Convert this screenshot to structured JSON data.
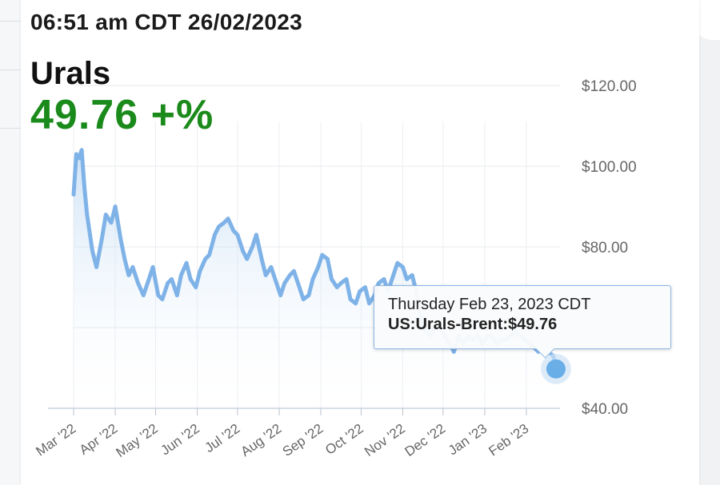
{
  "header": {
    "timestamp": "06:51 am CDT 26/02/2023",
    "title": "Urals",
    "value": "49.76 +%"
  },
  "tooltip": {
    "date": "Thursday Feb 23, 2023 CDT",
    "series_label": "US:Urals-Brent:",
    "series_value": "$49.76"
  },
  "colors": {
    "line": "#7fb3e8",
    "value_green": "#1a8a1a",
    "marker": "#6aaee8",
    "fill_top": "#a9ccef"
  },
  "chart_data": {
    "type": "area",
    "title": "Urals",
    "ylim": [
      40,
      120
    ],
    "yticks": [
      40,
      60,
      80,
      100,
      120
    ],
    "ytick_labels": [
      "$40.00",
      "",
      "$80.00",
      "$100.00",
      "$120.00"
    ],
    "xlim": [
      "2022-03-01",
      "2023-02-26"
    ],
    "xticks": [
      {
        "date": "2022-03-01",
        "label": "Mar '22"
      },
      {
        "date": "2022-04-01",
        "label": "Apr '22"
      },
      {
        "date": "2022-05-01",
        "label": "May '22"
      },
      {
        "date": "2022-06-01",
        "label": "Jun '22"
      },
      {
        "date": "2022-07-01",
        "label": "Jul '22"
      },
      {
        "date": "2022-08-01",
        "label": "Aug '22"
      },
      {
        "date": "2022-09-01",
        "label": "Sep '22"
      },
      {
        "date": "2022-10-01",
        "label": "Oct '22"
      },
      {
        "date": "2022-11-01",
        "label": "Nov '22"
      },
      {
        "date": "2022-12-01",
        "label": "Dec '22"
      },
      {
        "date": "2023-01-01",
        "label": "Jan '23"
      },
      {
        "date": "2023-02-01",
        "label": "Feb '23"
      }
    ],
    "grid": true,
    "series": [
      {
        "name": "US:Urals-Brent",
        "x": [
          "2022-03-01",
          "2022-03-03",
          "2022-03-05",
          "2022-03-07",
          "2022-03-09",
          "2022-03-11",
          "2022-03-15",
          "2022-03-18",
          "2022-03-22",
          "2022-03-25",
          "2022-03-29",
          "2022-04-01",
          "2022-04-05",
          "2022-04-08",
          "2022-04-11",
          "2022-04-14",
          "2022-04-18",
          "2022-04-22",
          "2022-04-26",
          "2022-04-29",
          "2022-05-03",
          "2022-05-06",
          "2022-05-10",
          "2022-05-13",
          "2022-05-17",
          "2022-05-20",
          "2022-05-24",
          "2022-05-27",
          "2022-05-31",
          "2022-06-03",
          "2022-06-07",
          "2022-06-10",
          "2022-06-14",
          "2022-06-17",
          "2022-06-21",
          "2022-06-24",
          "2022-06-28",
          "2022-07-01",
          "2022-07-05",
          "2022-07-08",
          "2022-07-12",
          "2022-07-15",
          "2022-07-19",
          "2022-07-22",
          "2022-07-26",
          "2022-07-29",
          "2022-08-02",
          "2022-08-05",
          "2022-08-09",
          "2022-08-12",
          "2022-08-16",
          "2022-08-19",
          "2022-08-23",
          "2022-08-26",
          "2022-08-30",
          "2022-09-02",
          "2022-09-06",
          "2022-09-09",
          "2022-09-13",
          "2022-09-16",
          "2022-09-20",
          "2022-09-23",
          "2022-09-27",
          "2022-09-30",
          "2022-10-04",
          "2022-10-07",
          "2022-10-11",
          "2022-10-14",
          "2022-10-18",
          "2022-10-21",
          "2022-10-25",
          "2022-10-28",
          "2022-11-01",
          "2022-11-04",
          "2022-11-08",
          "2022-11-11",
          "2022-11-15",
          "2022-11-18",
          "2022-11-22",
          "2022-11-25",
          "2022-11-29",
          "2022-12-02",
          "2022-12-06",
          "2022-12-09",
          "2022-12-13",
          "2022-12-16",
          "2022-12-20",
          "2022-12-23",
          "2022-12-27",
          "2022-12-30",
          "2023-01-03",
          "2023-01-06",
          "2023-01-10",
          "2023-01-13",
          "2023-01-17",
          "2023-01-20",
          "2023-01-24",
          "2023-01-27",
          "2023-01-31",
          "2023-02-03",
          "2023-02-07",
          "2023-02-10",
          "2023-02-14",
          "2023-02-17",
          "2023-02-21",
          "2023-02-23"
        ],
        "values": [
          93,
          103,
          102,
          104,
          95,
          88,
          79,
          75,
          82,
          88,
          86,
          90,
          82,
          77,
          73,
          75,
          71,
          68,
          72,
          75,
          68,
          67,
          71,
          72,
          68,
          73,
          76,
          72,
          70,
          74,
          77,
          78,
          83,
          85,
          86,
          87,
          84,
          83,
          79,
          77,
          80,
          83,
          77,
          73,
          75,
          72,
          68,
          71,
          73,
          74,
          70,
          67,
          68,
          72,
          75,
          78,
          77,
          72,
          70,
          71,
          72,
          67,
          66,
          69,
          70,
          66,
          68,
          71,
          72,
          69,
          73,
          76,
          75,
          72,
          73,
          69,
          61,
          59,
          58,
          60,
          60,
          58,
          56,
          54,
          58,
          56,
          58,
          57,
          58,
          56,
          58,
          58,
          56,
          57,
          57,
          58,
          59,
          58,
          57,
          56,
          55,
          54,
          56,
          54,
          53,
          49.76
        ]
      }
    ]
  }
}
